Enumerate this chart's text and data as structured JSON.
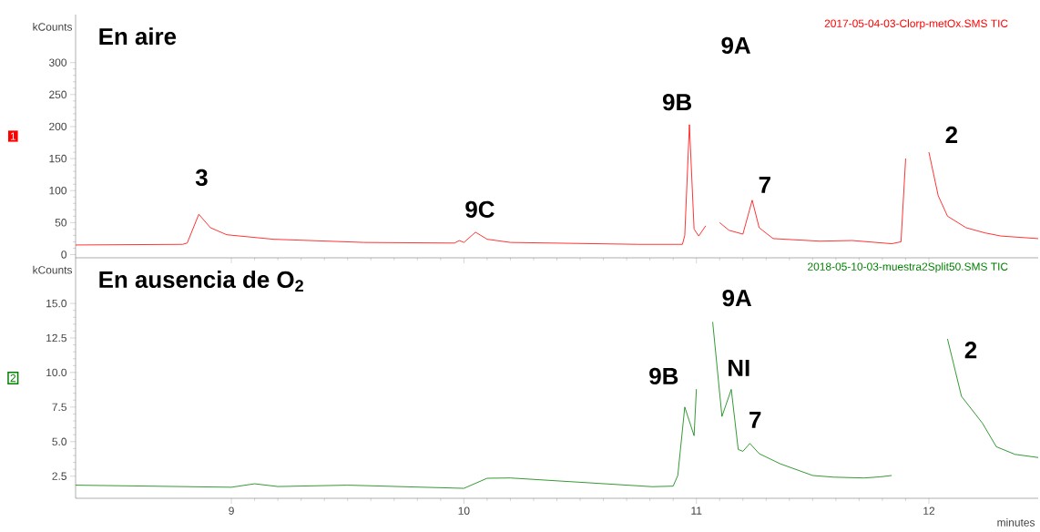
{
  "chart_data": [
    {
      "type": "line",
      "title": "En aire",
      "ylabel": "kCounts",
      "xlim": [
        8.33,
        12.47
      ],
      "ylim": [
        -5,
        375
      ],
      "xticks": [
        9,
        10,
        11,
        12
      ],
      "yticks": [
        0,
        50,
        100,
        150,
        200,
        250,
        300
      ],
      "tick_labels": "y",
      "marker": "none",
      "line_style": "solid",
      "series": [
        {
          "name": "2017-05-04-03-Clorp-metOx.SMS TIC",
          "color": "#ff0000",
          "x": [
            8.33,
            8.79,
            8.81,
            8.86,
            8.91,
            8.98,
            9.18,
            9.57,
            9.96,
            9.98,
            10.0,
            10.05,
            10.1,
            10.2,
            10.75,
            10.94,
            10.95,
            10.97,
            10.99,
            11.01,
            11.04,
            11.05,
            11.07,
            11.1,
            11.14,
            11.2,
            11.24,
            11.27,
            11.33,
            11.53,
            11.67,
            11.84,
            11.88,
            11.9,
            11.91,
            11.98,
            12.0,
            12.04,
            12.08,
            12.16,
            12.24,
            12.31,
            12.47
          ],
          "values": [
            15,
            16,
            18,
            63,
            42,
            31,
            24,
            19,
            18,
            22,
            19,
            35,
            24,
            19,
            16,
            16,
            30,
            203,
            40,
            29,
            45,
            null,
            null,
            50,
            38,
            32,
            85,
            42,
            25,
            21,
            22,
            17,
            20,
            150,
            null,
            null,
            160,
            92,
            60,
            42,
            34,
            29,
            25
          ]
        }
      ],
      "annotations": [
        "1",
        "3",
        "9C",
        "9B",
        "9A",
        "7",
        "2"
      ]
    },
    {
      "type": "line",
      "title": "En ausencia de O$_{2}$",
      "ylabel": "kCounts",
      "xlabel": "minutes",
      "xlim": [
        8.33,
        12.47
      ],
      "ylim": [
        0.9,
        18.3
      ],
      "xticks": [
        9,
        10,
        11,
        12
      ],
      "yticks": [
        {
          "value": 2.5,
          "label": "2.5"
        },
        {
          "value": 5,
          "label": "5.0"
        },
        {
          "value": 7.5,
          "label": "7.5"
        },
        {
          "value": 10,
          "label": "10.0"
        },
        {
          "value": 12.5,
          "label": "12.5"
        },
        {
          "value": 15,
          "label": "15.0"
        }
      ],
      "marker": "none",
      "line_style": "solid",
      "series": [
        {
          "name": "2018-05-10-03-muestra2Split50.SMS TIC",
          "color": "#008000",
          "x": [
            8.33,
            9.0,
            9.1,
            9.2,
            9.5,
            10.0,
            10.1,
            10.2,
            10.81,
            10.9,
            10.92,
            10.95,
            10.99,
            11.0,
            11.01,
            11.06,
            11.07,
            11.11,
            11.15,
            11.18,
            11.2,
            11.23,
            11.27,
            11.36,
            11.5,
            11.59,
            11.72,
            11.79,
            11.84,
            11.85,
            12.05,
            12.08,
            12.14,
            12.23,
            12.29,
            12.37,
            12.47
          ],
          "values": [
            1.85,
            1.7,
            1.95,
            1.75,
            1.85,
            1.62,
            2.35,
            2.37,
            1.74,
            1.78,
            2.55,
            7.5,
            5.43,
            8.8,
            null,
            null,
            13.66,
            6.82,
            8.78,
            4.43,
            4.3,
            4.87,
            4.13,
            3.4,
            2.55,
            2.43,
            2.37,
            2.45,
            2.55,
            null,
            null,
            12.43,
            8.28,
            6.34,
            4.63,
            4.08,
            3.85
          ]
        }
      ],
      "annotations": [
        "2",
        "9B",
        "9A",
        "NI",
        "7",
        "2"
      ]
    }
  ]
}
